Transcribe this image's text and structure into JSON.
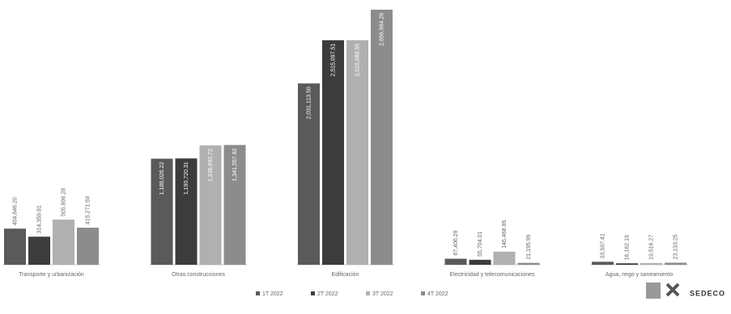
{
  "chart_data": {
    "type": "bar",
    "categories": [
      "Transporte y urbanización",
      "Otras construcciones",
      "Edificación",
      "Electricidad y telecomunicaciones",
      "Agua, riego y saneamiento"
    ],
    "series": [
      {
        "name": "1T 2022",
        "color": "#5a5a5a",
        "values": [
          404646.2,
          1188026.22,
          2031113.5,
          67406.29,
          33507.41
        ],
        "value_labels": [
          "404,646.20",
          "1,188,026.22",
          "2,031,113.50",
          "67,406.29",
          "33,507.41"
        ]
      },
      {
        "name": "2T 2022",
        "color": "#3c3c3c",
        "values": [
          314359.81,
          1190720.31,
          2515097.51,
          55704.01,
          16162.19
        ],
        "value_labels": [
          "314,359.81",
          "1,190,720.31",
          "2,515,097.51",
          "55,704.01",
          "16,162.19"
        ]
      },
      {
        "name": "3T 2022",
        "color": "#b0b0b0",
        "values": [
          505806.28,
          1336692.72,
          2515089.55,
          146468.85,
          19516.27
        ],
        "value_labels": [
          "505,806.28",
          "1,336,692.72",
          "2,515,089.55",
          "146,468.85",
          "19,516.27"
        ]
      },
      {
        "name": "4T 2022",
        "color": "#8c8c8c",
        "values": [
          415271.59,
          1341557.82,
          2856964.26,
          21195.99,
          23133.25
        ],
        "value_labels": [
          "415,271.59",
          "1,341,557.82",
          "2,856,964.26",
          "21,195.99",
          "23,133.25"
        ]
      }
    ],
    "logo_text": "SEDECO"
  }
}
